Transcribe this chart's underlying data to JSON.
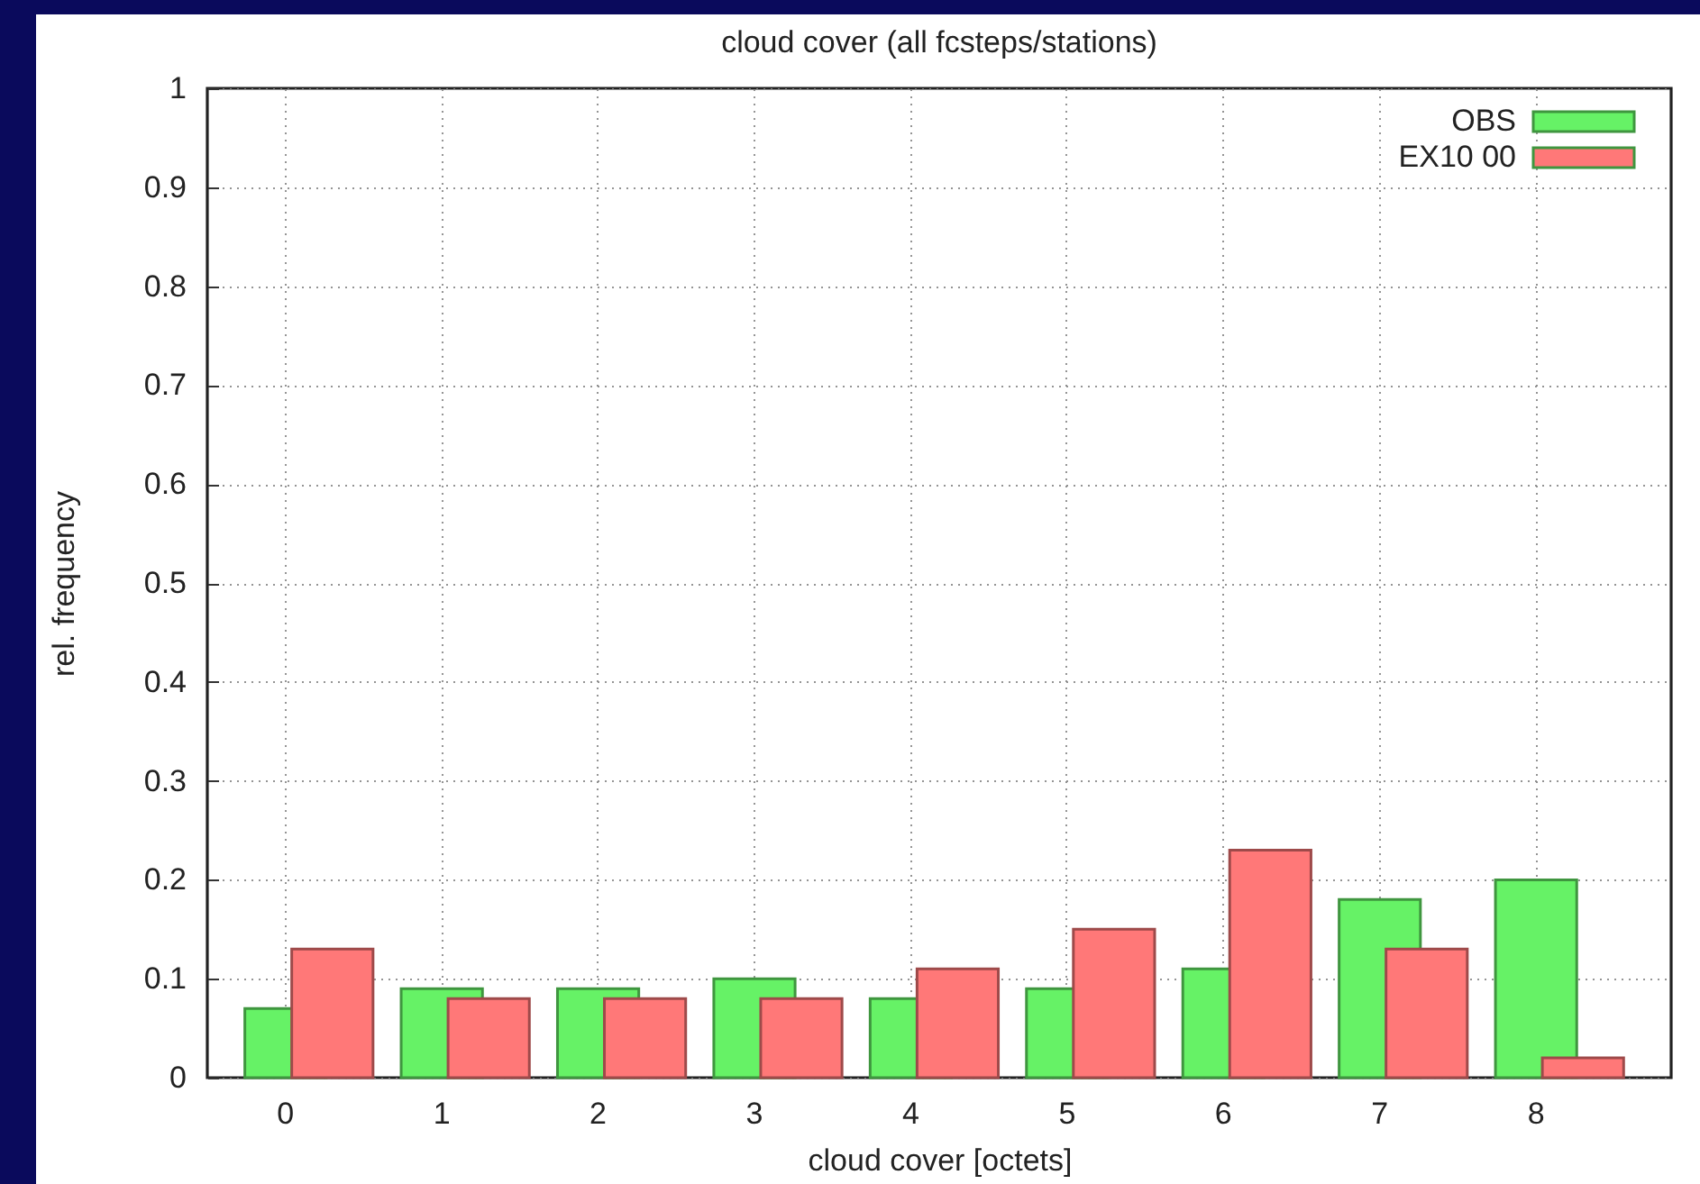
{
  "chart_data": {
    "type": "bar",
    "title": "cloud cover (all fcsteps/stations)",
    "xlabel": "cloud cover [octets]",
    "ylabel": "rel. frequency",
    "categories": [
      "0",
      "1",
      "2",
      "3",
      "4",
      "5",
      "6",
      "7",
      "8"
    ],
    "series": [
      {
        "name": "OBS",
        "color": "#66f266",
        "values": [
          0.07,
          0.09,
          0.09,
          0.1,
          0.08,
          0.09,
          0.11,
          0.18,
          0.2
        ]
      },
      {
        "name": "EX10 00",
        "color": "#ff7878",
        "values": [
          0.13,
          0.08,
          0.08,
          0.08,
          0.11,
          0.15,
          0.23,
          0.13,
          0.02
        ]
      }
    ],
    "ylim": [
      0,
      1
    ],
    "yticks": [
      0,
      0.1,
      0.2,
      0.3,
      0.4,
      0.5,
      0.6,
      0.7,
      0.8,
      0.9,
      1
    ],
    "grid": true,
    "legend": "top right"
  }
}
